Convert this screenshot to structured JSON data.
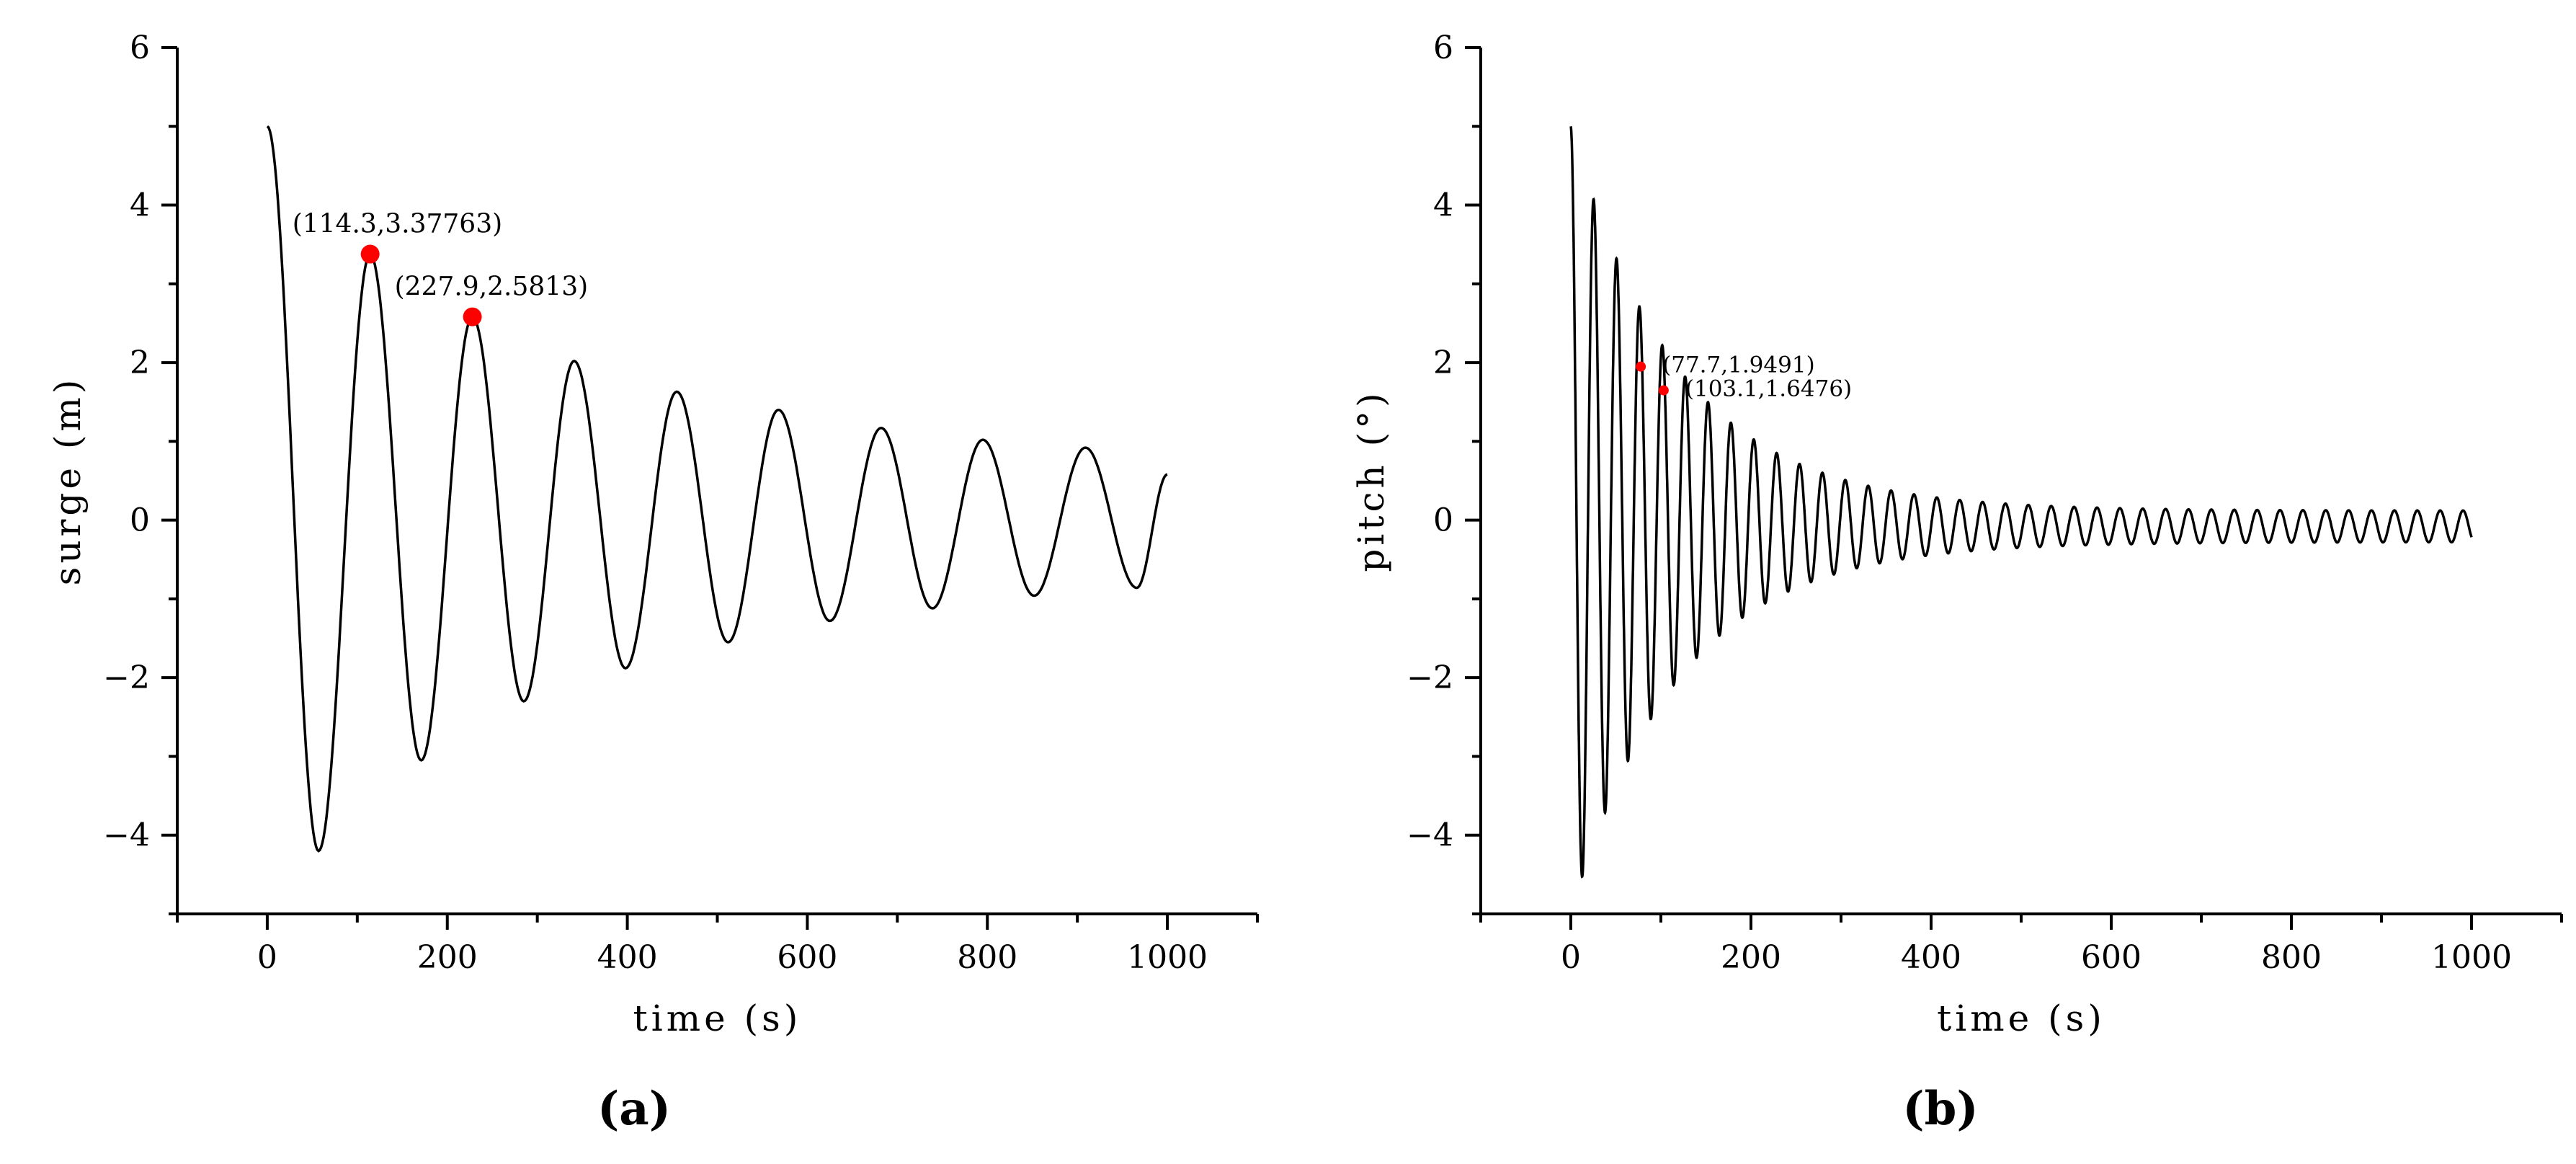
{
  "chart_data": [
    {
      "type": "line",
      "panel_label": "(a)",
      "xlabel": "time (s)",
      "ylabel": "surge (m)",
      "xlim": [
        -100,
        1100
      ],
      "ylim": [
        -5,
        6
      ],
      "xticks": [
        "0",
        "200",
        "400",
        "600",
        "800",
        "1000"
      ],
      "yticks": [
        "-4",
        "-2",
        "0",
        "2",
        "4",
        "6"
      ],
      "line_color": "#000000",
      "marker_color": "#ff0000",
      "model": {
        "x0": 0,
        "y0": 5.0,
        "x_end": 1000,
        "period": 113.6,
        "amp_at_5": [
          5.0,
          4.2,
          3.378,
          3.05,
          2.581,
          2.3,
          2.02,
          1.88,
          1.63,
          1.55,
          1.4,
          1.28,
          1.17,
          1.12,
          1.02,
          0.96,
          0.92,
          0.86,
          0.82
        ]
      },
      "annotations": [
        {
          "x": 114.3,
          "y": 3.37763,
          "label": "(114.3,3.37763)"
        },
        {
          "x": 227.9,
          "y": 2.5813,
          "label": "(227.9,2.5813)"
        }
      ],
      "peaks": [
        {
          "x": 0,
          "y": 5.0
        },
        {
          "x": 57,
          "y": -4.2
        },
        {
          "x": 114.3,
          "y": 3.378
        },
        {
          "x": 171,
          "y": -3.05
        },
        {
          "x": 227.9,
          "y": 2.581
        },
        {
          "x": 285,
          "y": -2.3
        },
        {
          "x": 341,
          "y": 2.02
        },
        {
          "x": 398,
          "y": -1.88
        },
        {
          "x": 455,
          "y": 1.63
        },
        {
          "x": 512,
          "y": -1.55
        },
        {
          "x": 568,
          "y": 1.4
        },
        {
          "x": 625,
          "y": -1.28
        },
        {
          "x": 682,
          "y": 1.17
        },
        {
          "x": 739,
          "y": -1.12
        },
        {
          "x": 795,
          "y": 1.02
        },
        {
          "x": 852,
          "y": -0.96
        },
        {
          "x": 909,
          "y": 0.92
        },
        {
          "x": 966,
          "y": -0.86
        },
        {
          "x": 1000,
          "y": 0.58
        }
      ]
    },
    {
      "type": "line",
      "panel_label": "(b)",
      "xlabel": "time (s)",
      "ylabel": "pitch (°)",
      "xlim": [
        -100,
        1100
      ],
      "ylim": [
        -5,
        6
      ],
      "xticks": [
        "0",
        "200",
        "400",
        "600",
        "800",
        "1000"
      ],
      "yticks": [
        "-4",
        "-2",
        "0",
        "2",
        "4",
        "6"
      ],
      "line_color": "#000000",
      "marker_color": "#ff0000",
      "model": {
        "x0": 0,
        "y0": 5.0,
        "x_end": 1000,
        "period": 25.4,
        "amp_start": 5.0,
        "amp_floor": 0.2,
        "decay_tau": 120
      },
      "annotations": [
        {
          "x": 77.7,
          "y": 1.9491,
          "label": "(77.7,1.9491)"
        },
        {
          "x": 103.1,
          "y": 1.6476,
          "label": "(103.1,1.6476)"
        }
      ]
    }
  ]
}
